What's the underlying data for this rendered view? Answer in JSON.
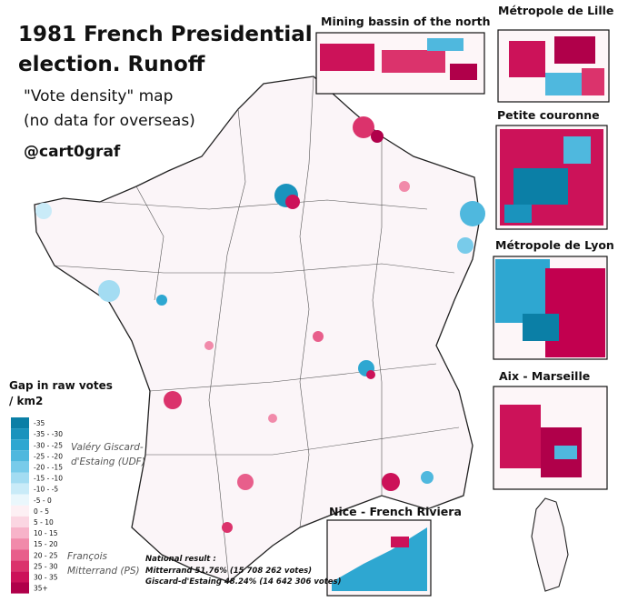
{
  "header": {
    "title_lines": [
      "1981 French Presidential",
      "election. Runoff"
    ],
    "subtitle_lines": [
      "\"Vote density\" map",
      "(no data for overseas)"
    ],
    "handle": "@cart0graf"
  },
  "insets": [
    {
      "title": "Mining bassin of the north"
    },
    {
      "title": "Métropole de Lille"
    },
    {
      "title": "Petite couronne"
    },
    {
      "title": "Métropole de Lyon"
    },
    {
      "title": "Aix - Marseille"
    },
    {
      "title": "Nice - French Riviera"
    }
  ],
  "legend": {
    "title_lines": [
      "Gap in raw votes",
      "/ km2"
    ],
    "bins": [
      {
        "label": "-35",
        "color": "#0b7fa6"
      },
      {
        "label": "-35 - -30",
        "color": "#1a93bd"
      },
      {
        "label": "-30 - -25",
        "color": "#2ea7d1"
      },
      {
        "label": "-25 - -20",
        "color": "#4fb8de"
      },
      {
        "label": "-20 - -15",
        "color": "#78cbea"
      },
      {
        "label": "-15 - -10",
        "color": "#a3dcf2"
      },
      {
        "label": "-10 - -5",
        "color": "#c9ebf8"
      },
      {
        "label": "-5 - 0",
        "color": "#eaf7fc"
      },
      {
        "label": "0 - 5",
        "color": "#fdf0f4"
      },
      {
        "label": "5 - 10",
        "color": "#fbd6e2"
      },
      {
        "label": "10 - 15",
        "color": "#f7b3c9"
      },
      {
        "label": "15 - 20",
        "color": "#f18aaa"
      },
      {
        "label": "20 - 25",
        "color": "#e85e8b"
      },
      {
        "label": "25 - 30",
        "color": "#db336c"
      },
      {
        "label": "30 - 35",
        "color": "#cc1259"
      },
      {
        "label": "35+",
        "color": "#b0004a"
      }
    ],
    "candidates": [
      {
        "lines": [
          "Valéry Giscard-",
          "d'Estaing (UDF)"
        ]
      },
      {
        "lines": [
          "François",
          "Mitterrand (PS)"
        ]
      }
    ]
  },
  "national_result": {
    "heading": "National result :",
    "lines": [
      "Mitterrand 51.76% (15 708 262 votes)",
      "Giscard-d'Estaing 48.24% (14 642 306 votes)"
    ]
  }
}
